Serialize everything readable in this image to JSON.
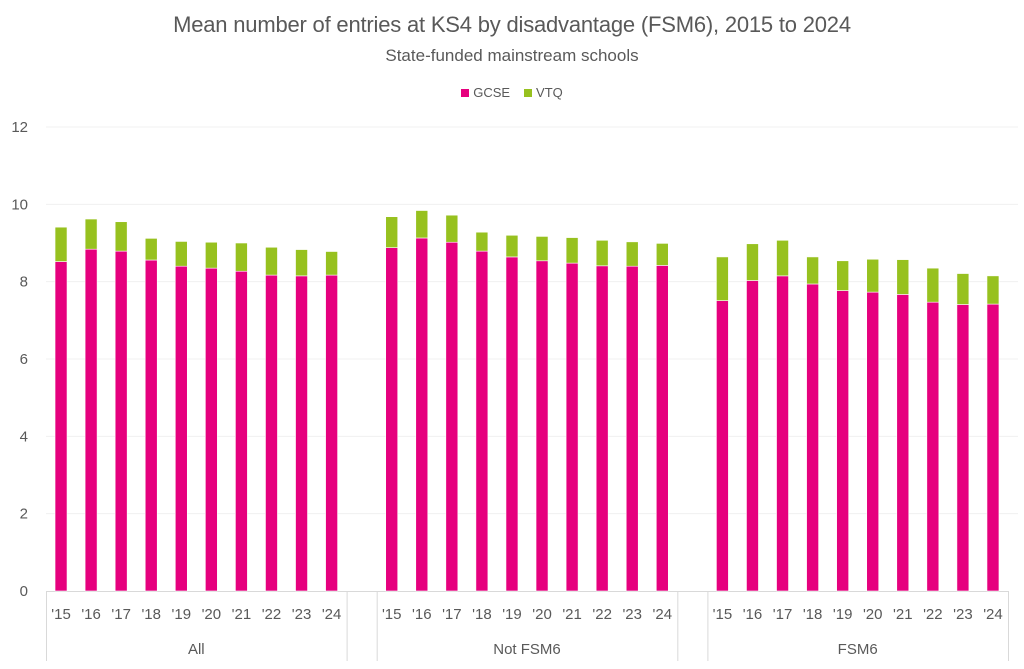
{
  "chart_data": {
    "type": "bar",
    "stacked": true,
    "title": "Mean number of entries at KS4 by disadvantage (FSM6), 2015 to 2024",
    "subtitle": "State-funded mainstream schools",
    "xlabel": "",
    "ylabel": "",
    "ylim": [
      0,
      12
    ],
    "yticks": [
      0,
      2,
      4,
      6,
      8,
      10,
      12
    ],
    "grid": true,
    "legend_position": "top-center",
    "legend": [
      {
        "name": "GCSE",
        "color": "#E6007E"
      },
      {
        "name": "VTQ",
        "color": "#97C11F"
      }
    ],
    "categories": [
      "'15",
      "'16",
      "'17",
      "'18",
      "'19",
      "'20",
      "'21",
      "'22",
      "'23",
      "'24"
    ],
    "groups": [
      {
        "name": "All",
        "series": [
          {
            "name": "GCSE",
            "values": [
              8.52,
              8.84,
              8.79,
              8.56,
              8.4,
              8.35,
              8.27,
              8.17,
              8.15,
              8.17
            ]
          },
          {
            "name": "VTQ",
            "values": [
              0.89,
              0.78,
              0.76,
              0.56,
              0.64,
              0.67,
              0.73,
              0.72,
              0.68,
              0.61
            ]
          }
        ]
      },
      {
        "name": "Not FSM6",
        "series": [
          {
            "name": "GCSE",
            "values": [
              8.88,
              9.13,
              9.02,
              8.79,
              8.64,
              8.54,
              8.48,
              8.41,
              8.4,
              8.42
            ]
          },
          {
            "name": "VTQ",
            "values": [
              0.8,
              0.71,
              0.7,
              0.49,
              0.56,
              0.63,
              0.66,
              0.66,
              0.63,
              0.57
            ]
          }
        ]
      },
      {
        "name": "FSM6",
        "series": [
          {
            "name": "GCSE",
            "values": [
              7.51,
              8.03,
              8.15,
              7.94,
              7.77,
              7.73,
              7.67,
              7.47,
              7.41,
              7.42
            ]
          },
          {
            "name": "VTQ",
            "values": [
              1.13,
              0.95,
              0.92,
              0.7,
              0.77,
              0.85,
              0.9,
              0.88,
              0.8,
              0.73
            ]
          }
        ]
      }
    ]
  }
}
